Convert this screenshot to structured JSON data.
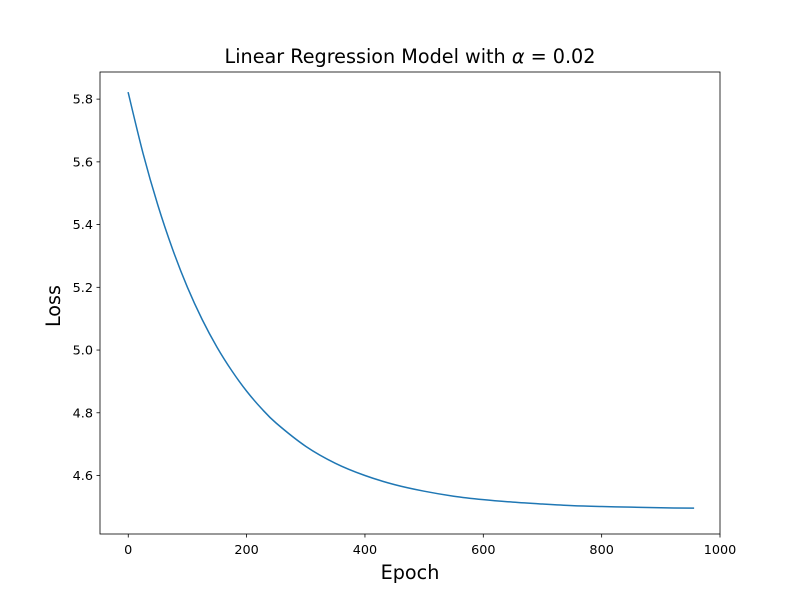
{
  "chart_data": {
    "type": "line",
    "title_prefix": "Linear Regression Model with ",
    "title_alpha": "α",
    "title_suffix": " = 0.02",
    "xlabel": "Epoch",
    "ylabel": "Loss",
    "xlim": [
      -47.75,
      1000
    ],
    "ylim": [
      4.4135,
      5.8865
    ],
    "grid": false,
    "legend": "none",
    "line_color": "#1f77b4",
    "x_ticks": [
      {
        "value": 0,
        "label": "0"
      },
      {
        "value": 200,
        "label": "200"
      },
      {
        "value": 400,
        "label": "400"
      },
      {
        "value": 600,
        "label": "600"
      },
      {
        "value": 800,
        "label": "800"
      },
      {
        "value": 1000,
        "label": "1000"
      }
    ],
    "y_ticks": [
      {
        "value": 4.6,
        "label": "4.6"
      },
      {
        "value": 4.8,
        "label": "4.8"
      },
      {
        "value": 5.0,
        "label": "5.0"
      },
      {
        "value": 5.2,
        "label": "5.2"
      },
      {
        "value": 5.4,
        "label": "5.4"
      },
      {
        "value": 5.6,
        "label": "5.6"
      },
      {
        "value": 5.8,
        "label": "5.8"
      }
    ],
    "series": [
      {
        "x": [
          0,
          25,
          50,
          75,
          100,
          125,
          150,
          175,
          200,
          225,
          250,
          300,
          350,
          400,
          450,
          500,
          550,
          600,
          650,
          700,
          750,
          800,
          850,
          900,
          955
        ],
        "y": [
          5.82,
          5.627,
          5.462,
          5.321,
          5.2,
          5.097,
          5.009,
          4.934,
          4.869,
          4.814,
          4.767,
          4.693,
          4.639,
          4.6,
          4.571,
          4.55,
          4.534,
          4.523,
          4.515,
          4.509,
          4.504,
          4.501,
          4.499,
          4.497,
          4.496
        ]
      }
    ]
  }
}
